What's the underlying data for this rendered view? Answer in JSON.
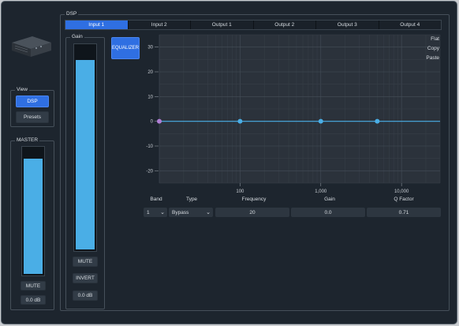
{
  "dsp": {
    "title": "DSP",
    "tabs": [
      {
        "label": "Input 1",
        "active": true
      },
      {
        "label": "Input 2",
        "active": false
      },
      {
        "label": "Output 1",
        "active": false
      },
      {
        "label": "Output 2",
        "active": false
      },
      {
        "label": "Output 3",
        "active": false
      },
      {
        "label": "Output 4",
        "active": false
      }
    ]
  },
  "view": {
    "title": "View",
    "dsp_label": "DSP",
    "presets_label": "Presets"
  },
  "master": {
    "title": "MASTER",
    "level": 0.92,
    "mute_label": "MUTE",
    "value": "0.0 dB"
  },
  "gain": {
    "title": "Gain",
    "level": 0.93,
    "mute_label": "MUTE",
    "invert_label": "INVERT",
    "value": "0.0 dB"
  },
  "equalizer": {
    "button_label": "EQUALIZER",
    "flat_label": "Flat",
    "copy_label": "Copy",
    "paste_label": "Paste"
  },
  "chart_data": {
    "type": "line",
    "x_scale": "log",
    "xlim": [
      10,
      30000
    ],
    "ylim": [
      -25,
      35
    ],
    "y_ticks": [
      30,
      20,
      10,
      0,
      -10,
      -20
    ],
    "y_tick_labels": [
      "30",
      "20",
      "10",
      "0",
      "-10",
      "-20"
    ],
    "x_tick_values": [
      100,
      1000,
      10000
    ],
    "x_tick_labels": [
      "100",
      "1,000",
      "10,000"
    ],
    "grid": true,
    "series": [
      {
        "x": [
          10,
          30000
        ],
        "y": [
          0,
          0
        ],
        "color": "#4aaee6"
      }
    ],
    "points": [
      {
        "x": 10,
        "y": 0,
        "color": "#b07fd6"
      },
      {
        "x": 100,
        "y": 0,
        "color": "#4aaee6"
      },
      {
        "x": 1000,
        "y": 0,
        "color": "#4aaee6"
      },
      {
        "x": 5000,
        "y": 0,
        "color": "#4aaee6"
      }
    ]
  },
  "band_editor": {
    "headers": {
      "band": "Band",
      "type": "Type",
      "frequency": "Frequency",
      "gain": "Gain",
      "q": "Q Factor"
    },
    "band_value": "1",
    "type_value": "Bypass",
    "frequency_value": "20",
    "gain_value": "0.0",
    "q_value": "0.71"
  },
  "colors": {
    "accent": "#2f6fe2",
    "meter": "#4aaee6",
    "background": "#1d252e"
  }
}
